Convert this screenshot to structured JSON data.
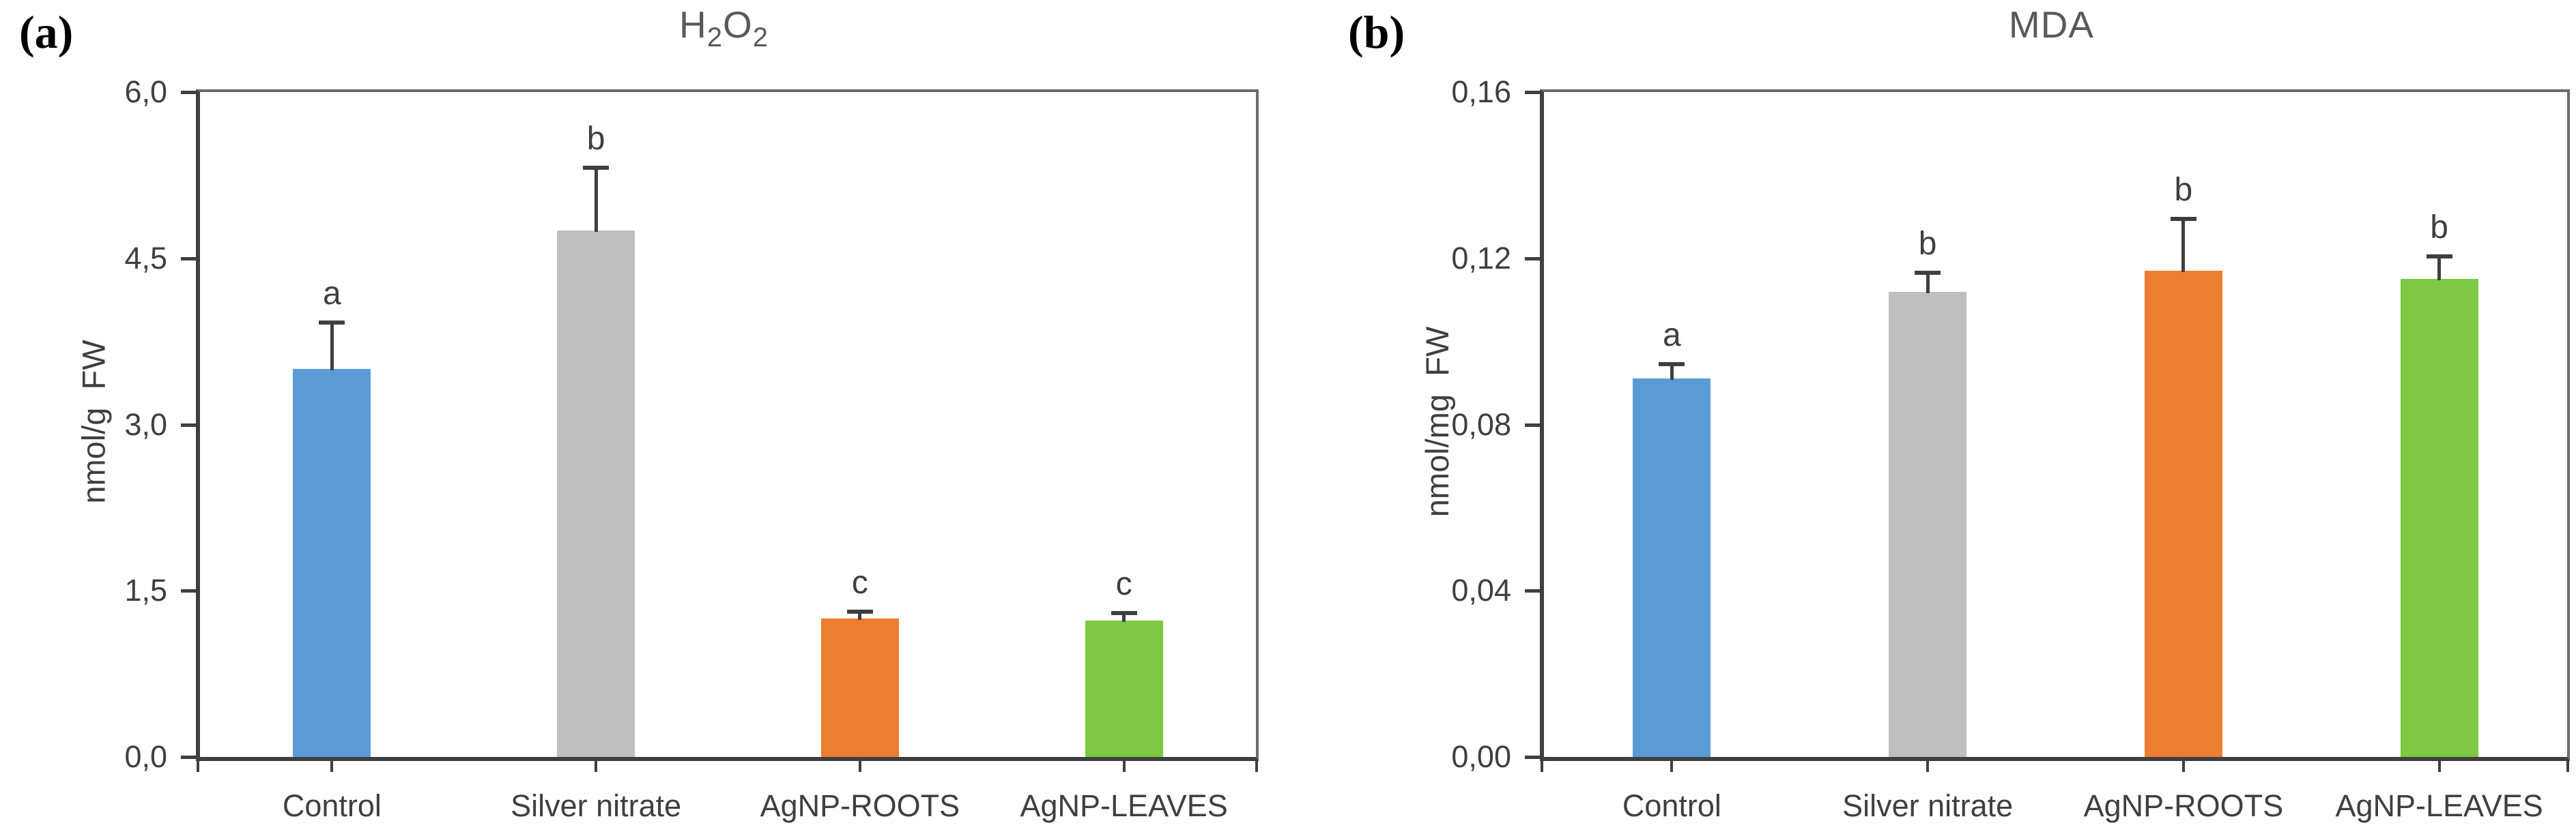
{
  "chart_data": [
    {
      "type": "bar",
      "panel_label": "(a)",
      "title": "H2O2",
      "title_parts": [
        {
          "text": "H",
          "sub": false
        },
        {
          "text": "2",
          "sub": true
        },
        {
          "text": "O",
          "sub": false
        },
        {
          "text": "2",
          "sub": true
        }
      ],
      "ylabel": "nmol/g  FW",
      "ylim": [
        0,
        6.0
      ],
      "ytick_values": [
        0,
        1.5,
        3.0,
        4.5,
        6.0
      ],
      "ytick_labels": [
        "0,0",
        "1,5",
        "3,0",
        "4,5",
        "6,0"
      ],
      "categories": [
        "Control",
        "Silver nitrate",
        "AgNP-ROOTS",
        "AgNP-LEAVES"
      ],
      "values": [
        3.5,
        4.75,
        1.25,
        1.23
      ],
      "errors_upper": [
        0.4,
        0.55,
        0.04,
        0.05
      ],
      "sig_letters": [
        "a",
        "b",
        "c",
        "c"
      ],
      "bar_colors": [
        "#5B9BD5",
        "#BFBFBF",
        "#ED7D31",
        "#7DC943"
      ],
      "grid": false,
      "legend": "none",
      "decimal_separator": ","
    },
    {
      "type": "bar",
      "panel_label": "(b)",
      "title": "MDA",
      "title_parts": [
        {
          "text": "MDA",
          "sub": false
        }
      ],
      "ylabel": "nmol/mg  FW",
      "ylim": [
        0,
        0.16
      ],
      "ytick_values": [
        0,
        0.04,
        0.08,
        0.12,
        0.16
      ],
      "ytick_labels": [
        "0,00",
        "0,04",
        "0,08",
        "0,12",
        "0,16"
      ],
      "categories": [
        "Control",
        "Silver nitrate",
        "AgNP-ROOTS",
        "AgNP-LEAVES"
      ],
      "values": [
        0.091,
        0.112,
        0.117,
        0.115
      ],
      "errors_upper": [
        0.003,
        0.004,
        0.012,
        0.005
      ],
      "sig_letters": [
        "a",
        "b",
        "b",
        "b"
      ],
      "bar_colors": [
        "#5B9BD5",
        "#BFBFBF",
        "#ED7D31",
        "#7DC943"
      ],
      "grid": false,
      "legend": "none",
      "decimal_separator": ","
    }
  ]
}
